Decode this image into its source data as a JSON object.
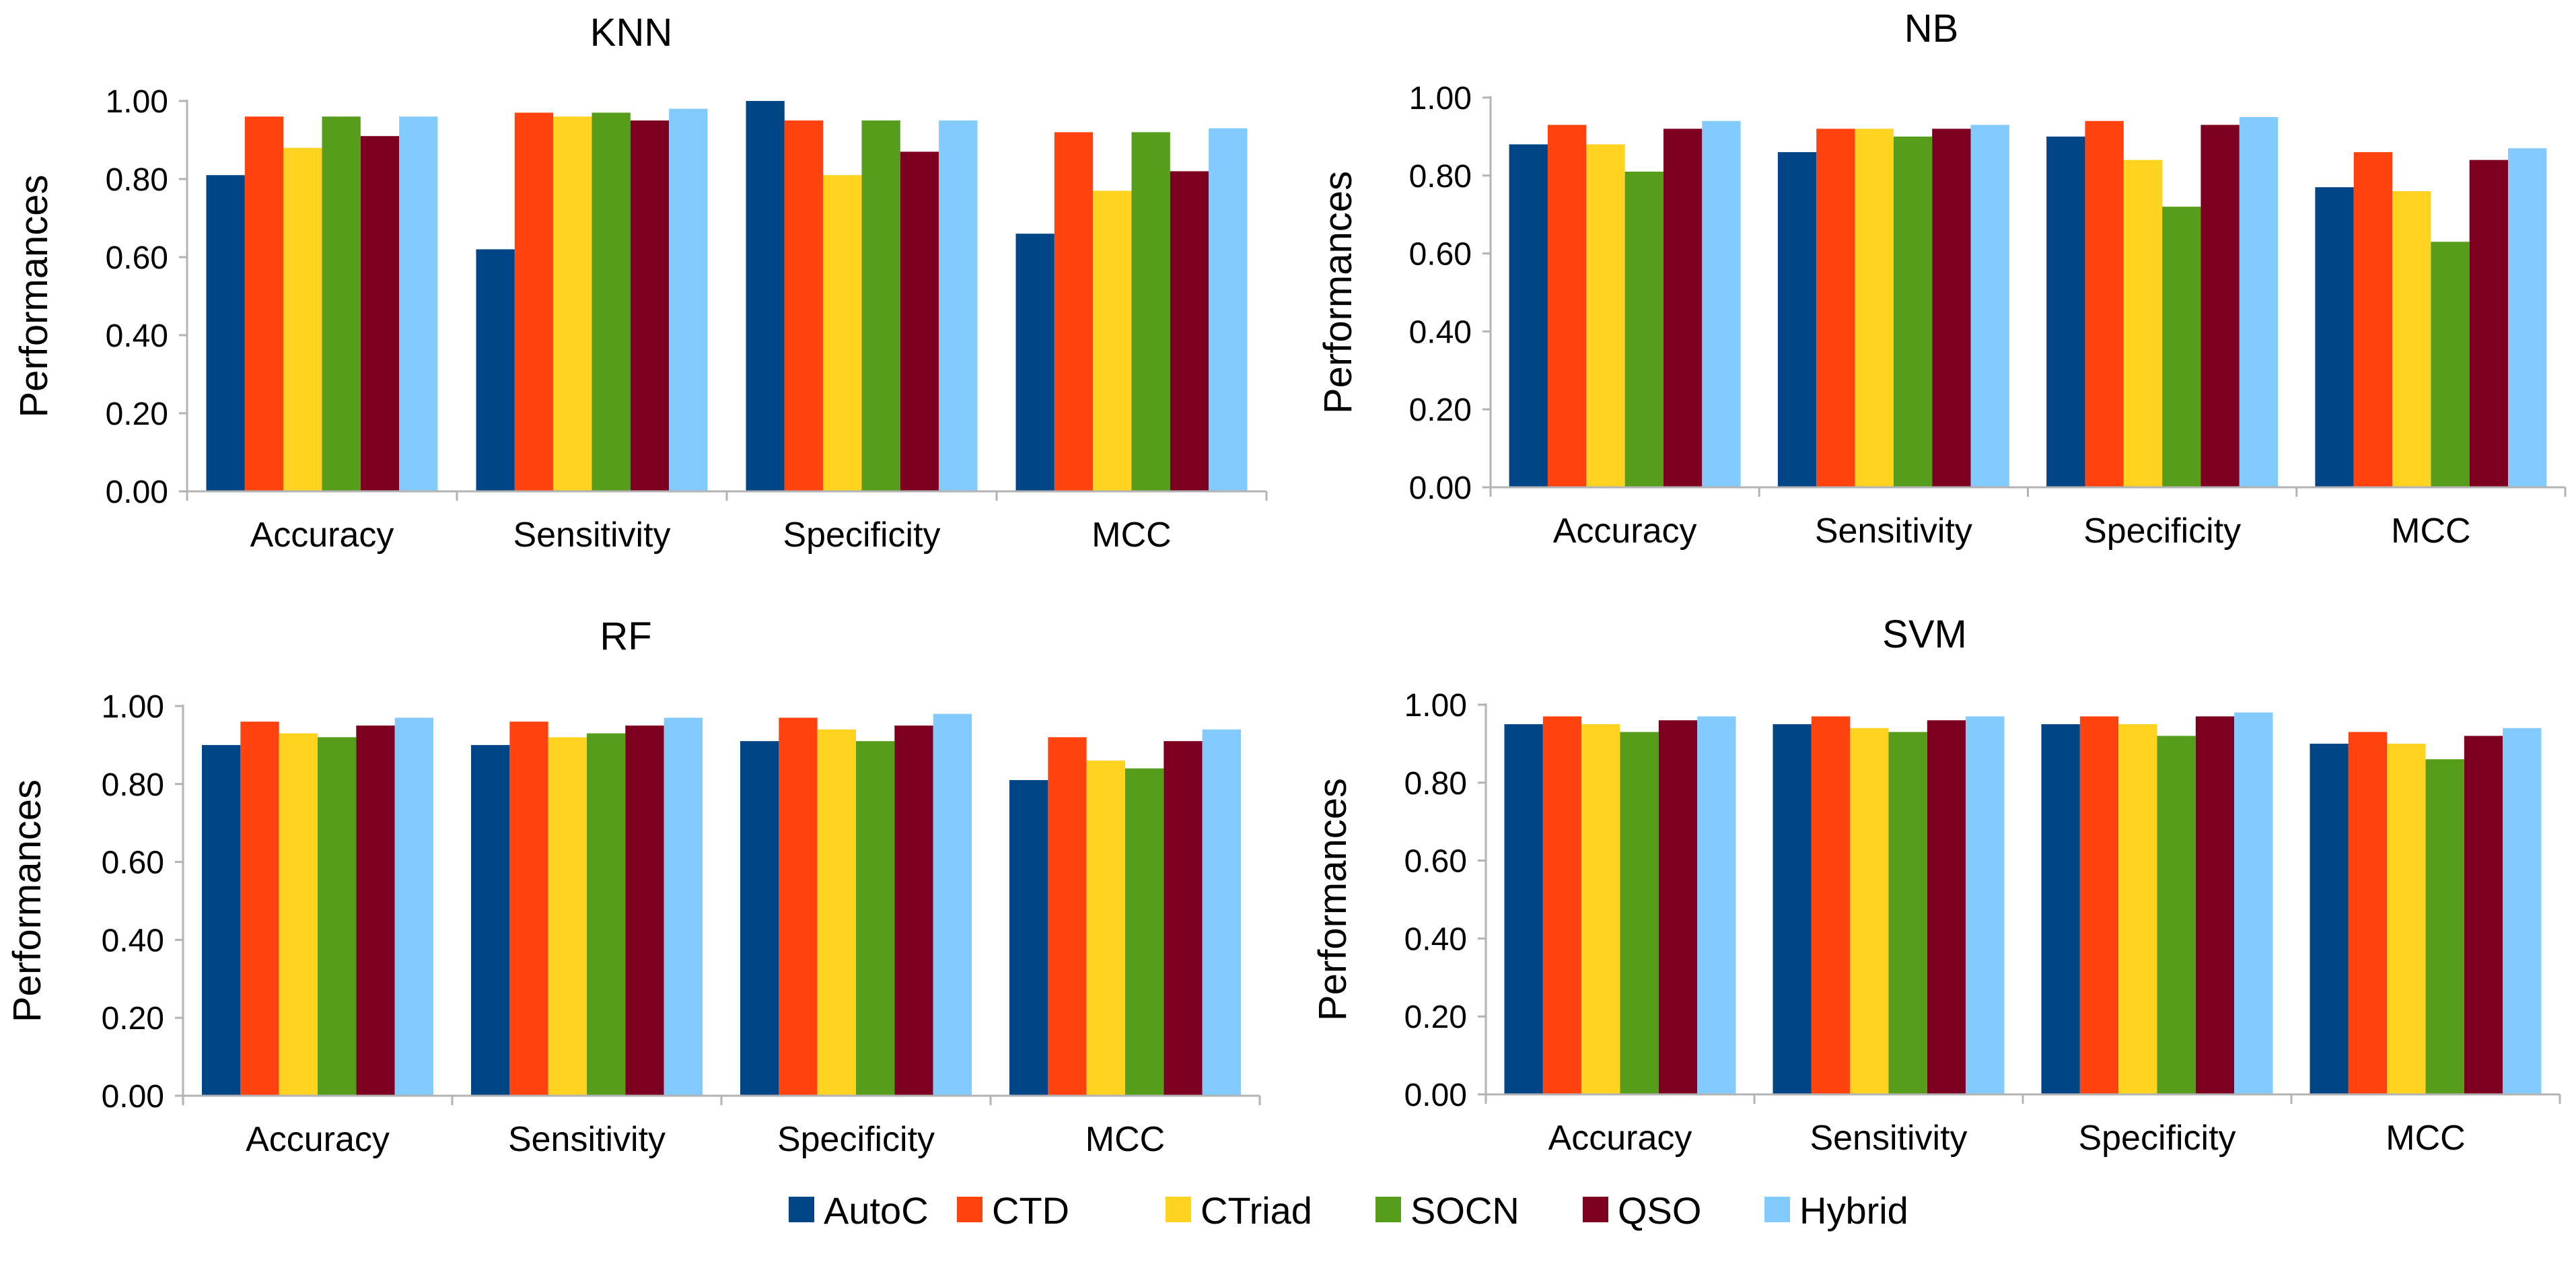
{
  "figure": {
    "legend_position": "bottom-center",
    "legend": [
      "AutoC",
      "CTD",
      "CTriad",
      "SOCN",
      "QSO",
      "Hybrid"
    ],
    "colors": [
      "#004586",
      "#ff420e",
      "#ffd320",
      "#579d1c",
      "#7e0021",
      "#83caff"
    ]
  },
  "chart_data": [
    {
      "type": "bar",
      "title": "KNN",
      "xlabel": "",
      "ylabel": "Performances",
      "ylim": [
        0,
        1
      ],
      "yticks": [
        "0.00",
        "0.20",
        "0.40",
        "0.60",
        "0.80",
        "1.00"
      ],
      "categories": [
        "Accuracy",
        "Sensitivity",
        "Specificity",
        "MCC"
      ],
      "series": [
        {
          "name": "AutoC",
          "values": [
            0.81,
            0.62,
            1.0,
            0.66
          ]
        },
        {
          "name": "CTD",
          "values": [
            0.96,
            0.97,
            0.95,
            0.92
          ]
        },
        {
          "name": "CTriad",
          "values": [
            0.88,
            0.96,
            0.81,
            0.77
          ]
        },
        {
          "name": "SOCN",
          "values": [
            0.96,
            0.97,
            0.95,
            0.92
          ]
        },
        {
          "name": "QSO",
          "values": [
            0.91,
            0.95,
            0.87,
            0.82
          ]
        },
        {
          "name": "Hybrid",
          "values": [
            0.96,
            0.98,
            0.95,
            0.93
          ]
        }
      ]
    },
    {
      "type": "bar",
      "title": "NB",
      "xlabel": "",
      "ylabel": "Performances",
      "ylim": [
        0,
        1
      ],
      "yticks": [
        "0.00",
        "0.20",
        "0.40",
        "0.60",
        "0.80",
        "1.00"
      ],
      "categories": [
        "Accuracy",
        "Sensitivity",
        "Specificity",
        "MCC"
      ],
      "series": [
        {
          "name": "AutoC",
          "values": [
            0.88,
            0.86,
            0.9,
            0.77
          ]
        },
        {
          "name": "CTD",
          "values": [
            0.93,
            0.92,
            0.94,
            0.86
          ]
        },
        {
          "name": "CTriad",
          "values": [
            0.88,
            0.92,
            0.84,
            0.76
          ]
        },
        {
          "name": "SOCN",
          "values": [
            0.81,
            0.9,
            0.72,
            0.63
          ]
        },
        {
          "name": "QSO",
          "values": [
            0.92,
            0.92,
            0.93,
            0.84
          ]
        },
        {
          "name": "Hybrid",
          "values": [
            0.94,
            0.93,
            0.95,
            0.87
          ]
        }
      ]
    },
    {
      "type": "bar",
      "title": "RF",
      "xlabel": "",
      "ylabel": "Performances",
      "ylim": [
        0,
        1
      ],
      "yticks": [
        "0.00",
        "0.20",
        "0.40",
        "0.60",
        "0.80",
        "1.00"
      ],
      "categories": [
        "Accuracy",
        "Sensitivity",
        "Specificity",
        "MCC"
      ],
      "series": [
        {
          "name": "AutoC",
          "values": [
            0.9,
            0.9,
            0.91,
            0.81
          ]
        },
        {
          "name": "CTD",
          "values": [
            0.96,
            0.96,
            0.97,
            0.92
          ]
        },
        {
          "name": "CTriad",
          "values": [
            0.93,
            0.92,
            0.94,
            0.86
          ]
        },
        {
          "name": "SOCN",
          "values": [
            0.92,
            0.93,
            0.91,
            0.84
          ]
        },
        {
          "name": "QSO",
          "values": [
            0.95,
            0.95,
            0.95,
            0.91
          ]
        },
        {
          "name": "Hybrid",
          "values": [
            0.97,
            0.97,
            0.98,
            0.94
          ]
        }
      ]
    },
    {
      "type": "bar",
      "title": "SVM",
      "xlabel": "",
      "ylabel": "Performances",
      "ylim": [
        0,
        1
      ],
      "yticks": [
        "0.00",
        "0.20",
        "0.40",
        "0.60",
        "0.80",
        "1.00"
      ],
      "categories": [
        "Accuracy",
        "Sensitivity",
        "Specificity",
        "MCC"
      ],
      "series": [
        {
          "name": "AutoC",
          "values": [
            0.95,
            0.95,
            0.95,
            0.9
          ]
        },
        {
          "name": "CTD",
          "values": [
            0.97,
            0.97,
            0.97,
            0.93
          ]
        },
        {
          "name": "CTriad",
          "values": [
            0.95,
            0.94,
            0.95,
            0.9
          ]
        },
        {
          "name": "SOCN",
          "values": [
            0.93,
            0.93,
            0.92,
            0.86
          ]
        },
        {
          "name": "QSO",
          "values": [
            0.96,
            0.96,
            0.97,
            0.92
          ]
        },
        {
          "name": "Hybrid",
          "values": [
            0.97,
            0.97,
            0.98,
            0.94
          ]
        }
      ]
    }
  ]
}
